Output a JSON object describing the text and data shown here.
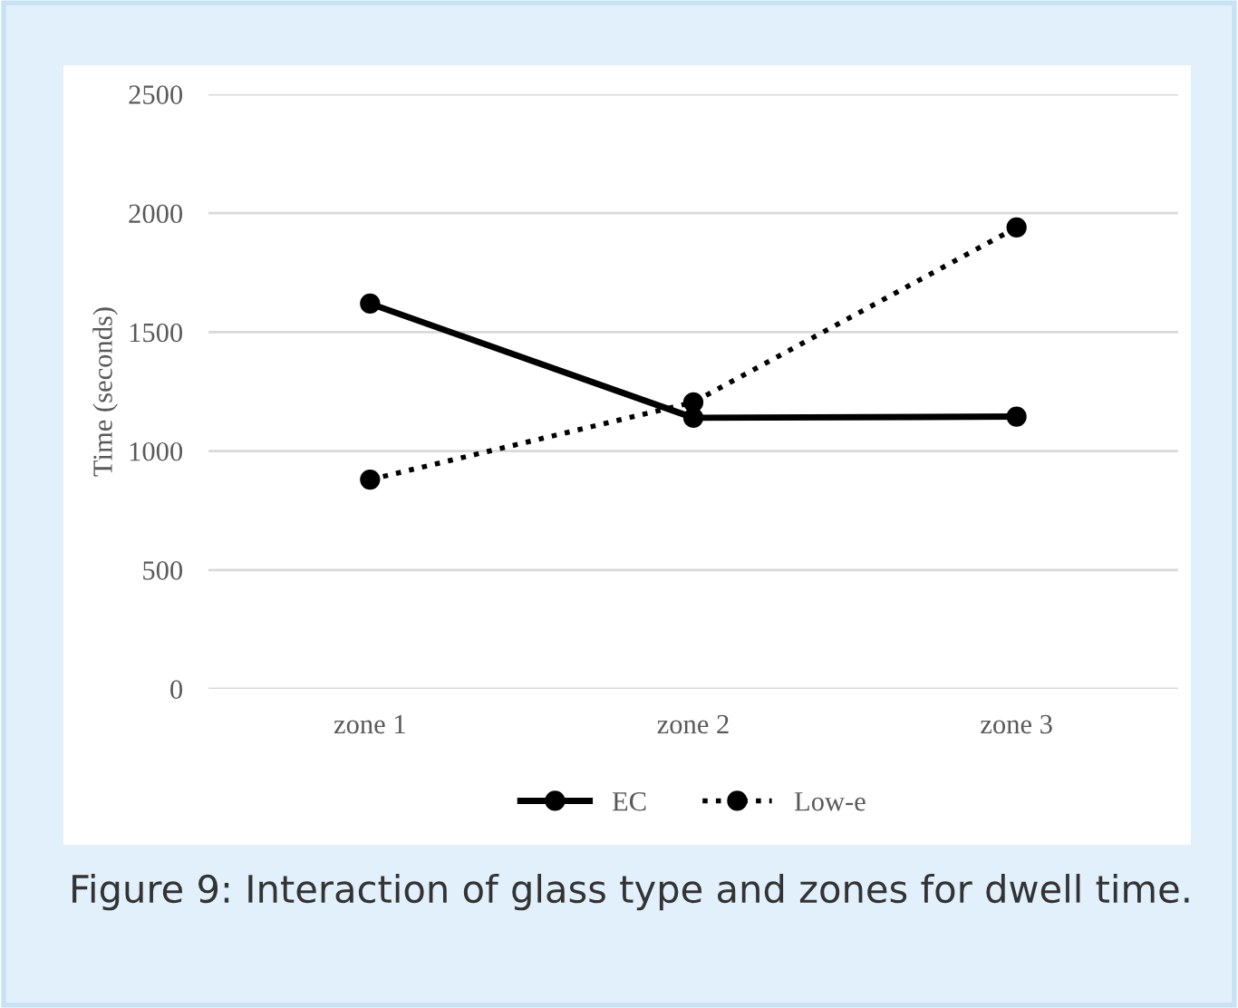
{
  "chart_data": {
    "type": "line",
    "ylabel": "Time (seconds)",
    "categories": [
      "zone 1",
      "zone 2",
      "zone 3"
    ],
    "series": [
      {
        "name": "EC",
        "color": "#000000",
        "values": [
          1620,
          1140,
          1145
        ],
        "line_style": "solid"
      },
      {
        "name": "Low-e",
        "color": "#000000",
        "values": [
          880,
          1205,
          1940
        ],
        "line_style": "dotted"
      }
    ],
    "ylim": [
      0,
      2500
    ],
    "yticks": [
      0,
      500,
      1000,
      1500,
      2000,
      2500
    ],
    "grid": "y",
    "legend": "bottom",
    "marker": "circle",
    "annotations": [
      "Figure 9: Interaction of glass type and zones for dwell time."
    ]
  }
}
